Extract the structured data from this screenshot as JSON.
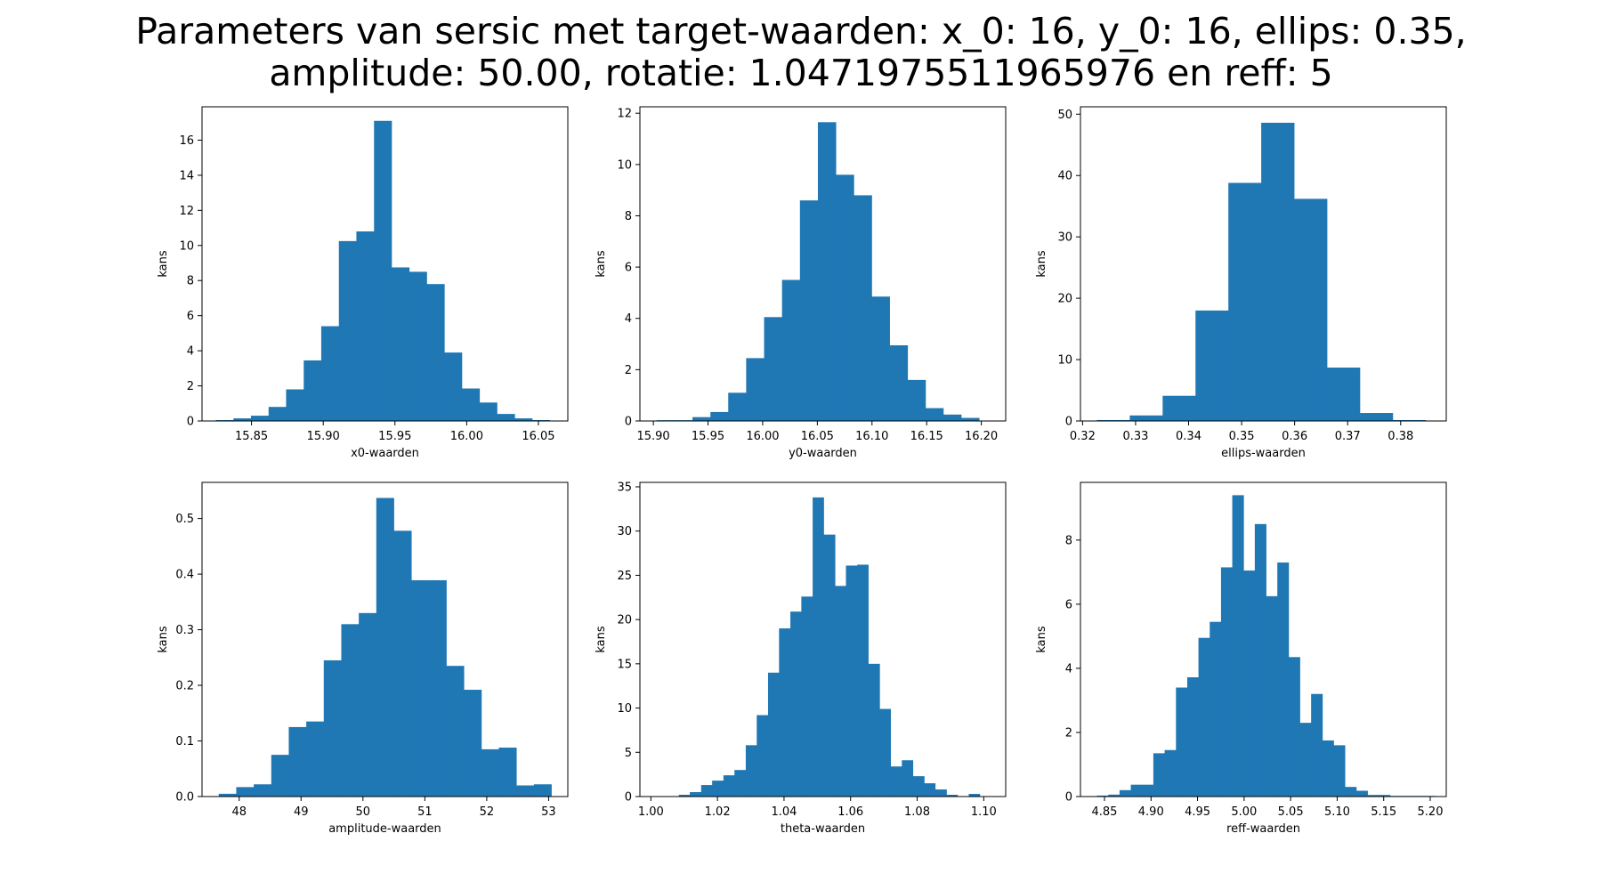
{
  "figure": {
    "title_lines": [
      "Parameters van sersic met target-waarden: x_0: 16, y_0: 16, ellips: 0.35,",
      "amplitude: 50.00, rotatie: 1.0471975511965976 en reff: 5"
    ],
    "bar_color": "#1f77b4"
  },
  "chart_data": [
    {
      "type": "bar",
      "subtype": "histogram",
      "xlabel": "x0-waarden",
      "ylabel": "kans",
      "xlim": [
        15.8155,
        16.0705
      ],
      "ylim": [
        0,
        17.9
      ],
      "xticks": [
        15.85,
        15.9,
        15.95,
        16.0,
        16.05
      ],
      "xtick_labels": [
        "15.85",
        "15.90",
        "15.95",
        "16.00",
        "16.05"
      ],
      "yticks": [
        0,
        2,
        4,
        6,
        8,
        10,
        12,
        14,
        16
      ],
      "ytick_labels": [
        "0",
        "2",
        "4",
        "6",
        "8",
        "10",
        "12",
        "14",
        "16"
      ],
      "bin_edges": [
        15.8251,
        15.8374,
        15.8496,
        15.8619,
        15.8741,
        15.8864,
        15.8986,
        15.9109,
        15.9231,
        15.9354,
        15.9476,
        15.9599,
        15.9721,
        15.9844,
        15.9966,
        16.0089,
        16.0211,
        16.0334,
        16.0456,
        16.0579
      ],
      "values": [
        0.05,
        0.15,
        0.3,
        0.8,
        1.8,
        3.45,
        5.4,
        10.25,
        10.8,
        17.1,
        8.75,
        8.5,
        7.8,
        3.9,
        1.85,
        1.05,
        0.4,
        0.15,
        0.05
      ]
    },
    {
      "type": "bar",
      "subtype": "histogram",
      "xlabel": "y0-waarden",
      "ylabel": "kans",
      "xlim": [
        15.8877,
        16.2223
      ],
      "ylim": [
        0,
        12.25
      ],
      "xticks": [
        15.9,
        15.95,
        16.0,
        16.05,
        16.1,
        16.15,
        16.2
      ],
      "xtick_labels": [
        "15.90",
        "15.95",
        "16.00",
        "16.05",
        "16.10",
        "16.15",
        "16.20"
      ],
      "yticks": [
        0,
        2,
        4,
        6,
        8,
        10,
        12
      ],
      "ytick_labels": [
        "0",
        "2",
        "4",
        "6",
        "8",
        "10",
        "12"
      ],
      "bin_edges": [
        15.903,
        15.9194,
        15.9358,
        15.9522,
        15.9685,
        15.9849,
        16.0013,
        16.0177,
        16.0341,
        16.0505,
        16.0669,
        16.0833,
        16.0997,
        16.1161,
        16.1325,
        16.1489,
        16.1652,
        16.1816,
        16.198
      ],
      "values": [
        0.03,
        0.03,
        0.15,
        0.35,
        1.1,
        2.45,
        4.05,
        5.5,
        8.6,
        11.65,
        9.6,
        8.8,
        4.85,
        2.95,
        1.6,
        0.5,
        0.25,
        0.12
      ]
    },
    {
      "type": "bar",
      "subtype": "histogram",
      "xlabel": "ellips-waarden",
      "ylabel": "kans",
      "xlim": [
        0.3196,
        0.3886
      ],
      "ylim": [
        0,
        51.2
      ],
      "xticks": [
        0.32,
        0.33,
        0.34,
        0.35,
        0.36,
        0.37,
        0.38
      ],
      "xtick_labels": [
        "0.32",
        "0.33",
        "0.34",
        "0.35",
        "0.36",
        "0.37",
        "0.38"
      ],
      "yticks": [
        0,
        10,
        20,
        30,
        40,
        50
      ],
      "ytick_labels": [
        "0",
        "10",
        "20",
        "30",
        "40",
        "50"
      ],
      "bin_edges": [
        0.3227,
        0.3289,
        0.3351,
        0.3413,
        0.3475,
        0.3537,
        0.3599,
        0.3661,
        0.3723,
        0.3785,
        0.3847
      ],
      "values": [
        0.15,
        0.9,
        4.1,
        18.0,
        38.8,
        48.6,
        36.2,
        8.7,
        1.3,
        0.15
      ]
    },
    {
      "type": "bar",
      "subtype": "histogram",
      "xlabel": "amplitude-waarden",
      "ylabel": "kans",
      "xlim": [
        47.4,
        53.31
      ],
      "ylim": [
        0,
        0.565
      ],
      "xticks": [
        48,
        49,
        50,
        51,
        52,
        53
      ],
      "xtick_labels": [
        "48",
        "49",
        "50",
        "51",
        "52",
        "53"
      ],
      "yticks": [
        0,
        0.1,
        0.2,
        0.3,
        0.4,
        0.5
      ],
      "ytick_labels": [
        "0.0",
        "0.1",
        "0.2",
        "0.3",
        "0.4",
        "0.5"
      ],
      "bin_edges": [
        47.67,
        47.9528,
        48.2357,
        48.5185,
        48.8013,
        49.0842,
        49.367,
        49.6498,
        49.9327,
        50.2155,
        50.4983,
        50.7812,
        51.064,
        51.3468,
        51.6297,
        51.9125,
        52.1953,
        52.4782,
        52.761,
        53.0438
      ],
      "values": [
        0.005,
        0.017,
        0.022,
        0.075,
        0.125,
        0.135,
        0.245,
        0.31,
        0.33,
        0.537,
        0.478,
        0.389,
        0.389,
        0.235,
        0.192,
        0.085,
        0.088,
        0.02,
        0.022
      ]
    },
    {
      "type": "bar",
      "subtype": "histogram",
      "xlabel": "theta-waarden",
      "ylabel": "kans",
      "xlim": [
        0.9967,
        1.1066
      ],
      "ylim": [
        0,
        35.5
      ],
      "xticks": [
        1.0,
        1.02,
        1.04,
        1.06,
        1.08,
        1.1
      ],
      "xtick_labels": [
        "1.00",
        "1.02",
        "1.04",
        "1.06",
        "1.08",
        "1.10"
      ],
      "yticks": [
        0,
        5,
        10,
        15,
        20,
        25,
        30,
        35
      ],
      "ytick_labels": [
        "0",
        "5",
        "10",
        "15",
        "20",
        "25",
        "30",
        "35"
      ],
      "bin_edges": [
        1.0017,
        1.005,
        1.0084,
        1.0117,
        1.0151,
        1.0184,
        1.0218,
        1.0251,
        1.0285,
        1.0318,
        1.0352,
        1.0385,
        1.0419,
        1.0452,
        1.0486,
        1.0519,
        1.0553,
        1.0586,
        1.062,
        1.0653,
        1.0687,
        1.072,
        1.0754,
        1.0787,
        1.0821,
        1.0854,
        1.0888,
        1.0921,
        1.0955,
        1.0988,
        1.1022
      ],
      "values": [
        0.05,
        0.05,
        0.2,
        0.5,
        1.3,
        1.8,
        2.4,
        3.0,
        5.8,
        9.2,
        14.0,
        19.0,
        20.9,
        22.6,
        33.8,
        29.6,
        23.8,
        26.1,
        26.2,
        15.0,
        9.9,
        3.4,
        4.1,
        2.3,
        1.5,
        0.8,
        0.2,
        0.05,
        0.3,
        0.05
      ]
    },
    {
      "type": "bar",
      "subtype": "histogram",
      "xlabel": "reff-waarden",
      "ylabel": "kans",
      "xlim": [
        4.8242,
        5.2172
      ],
      "ylim": [
        0,
        9.8
      ],
      "xticks": [
        4.85,
        4.9,
        4.95,
        5.0,
        5.05,
        5.1,
        5.15,
        5.2
      ],
      "xtick_labels": [
        "4.85",
        "4.90",
        "4.95",
        "5.00",
        "5.05",
        "5.10",
        "5.15",
        "5.20"
      ],
      "yticks": [
        0,
        2,
        4,
        6,
        8
      ],
      "ytick_labels": [
        "0",
        "2",
        "4",
        "6",
        "8"
      ],
      "bin_edges": [
        4.842,
        4.8541,
        4.8662,
        4.8783,
        4.8904,
        4.9025,
        4.9146,
        4.9268,
        4.9389,
        4.951,
        4.9631,
        4.9752,
        4.9873,
        4.9994,
        5.0115,
        5.0236,
        5.0357,
        5.0478,
        5.0599,
        5.072,
        5.0841,
        5.0962,
        5.1083,
        5.1205,
        5.1326,
        5.1447,
        5.1568,
        5.1689,
        5.181,
        5.1931,
        5.2052
      ],
      "values": [
        0.03,
        0.06,
        0.2,
        0.37,
        0.37,
        1.35,
        1.45,
        3.4,
        3.72,
        4.95,
        5.45,
        7.15,
        9.4,
        7.05,
        8.5,
        6.25,
        7.3,
        4.35,
        2.3,
        3.2,
        1.75,
        1.6,
        0.3,
        0.18,
        0.05,
        0.05,
        0.02,
        0.02,
        0.02,
        0.02
      ]
    }
  ]
}
